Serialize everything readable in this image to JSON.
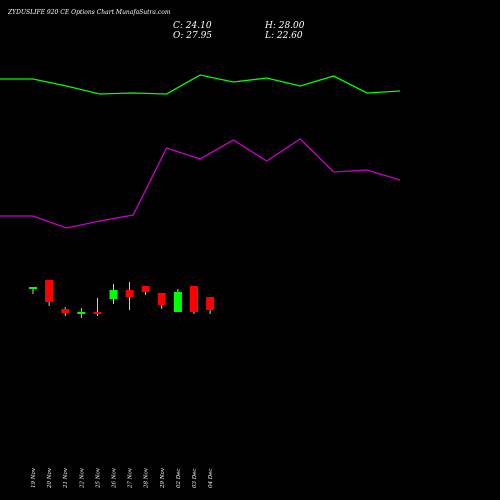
{
  "chart_data": {
    "type": "candlestick",
    "title": "ZYDUSLIFE 920  CE Options  Chart MunafaSutra.com",
    "ohlc_readout": {
      "C": "C: 24.10",
      "O": "O: 27.95",
      "H": "H: 28.00",
      "L": "L: 22.60"
    },
    "categories": [
      "19 Nov",
      "20 Nov",
      "21 Nov",
      "22 Nov",
      "25 Nov",
      "26 Nov",
      "27 Nov",
      "28 Nov",
      "29 Nov",
      "02 Dec",
      "03 Dec",
      "04 Dec"
    ],
    "candles": [
      {
        "date": "19 Nov",
        "open": 61.0,
        "high": 63.0,
        "low": 56.0,
        "close": 63.0,
        "dir": "up"
      },
      {
        "date": "20 Nov",
        "open": 70.0,
        "high": 70.0,
        "low": 44.0,
        "close": 48.0,
        "dir": "down"
      },
      {
        "date": "21 Nov",
        "open": 41.0,
        "high": 43.0,
        "low": 34.0,
        "close": 37.0,
        "dir": "down"
      },
      {
        "date": "22 Nov",
        "open": 37.5,
        "high": 42.0,
        "low": 32.0,
        "close": 38.0,
        "dir": "up"
      },
      {
        "date": "25 Nov",
        "open": 38.0,
        "high": 52.0,
        "low": 34.0,
        "close": 37.0,
        "dir": "down"
      },
      {
        "date": "26 Nov",
        "open": 51.0,
        "high": 66.0,
        "low": 46.0,
        "close": 60.0,
        "dir": "up"
      },
      {
        "date": "27 Nov",
        "open": 60.0,
        "high": 68.0,
        "low": 40.0,
        "close": 53.0,
        "dir": "down"
      },
      {
        "date": "28 Nov",
        "open": 64.0,
        "high": 64.0,
        "low": 55.0,
        "close": 58.0,
        "dir": "down"
      },
      {
        "date": "29 Nov",
        "open": 57.0,
        "high": 57.0,
        "low": 41.0,
        "close": 45.0,
        "dir": "down"
      },
      {
        "date": "02 Dec",
        "open": 38.0,
        "high": 61.0,
        "low": 38.0,
        "close": 58.0,
        "dir": "up"
      },
      {
        "date": "03 Dec",
        "open": 64.0,
        "high": 64.0,
        "low": 36.0,
        "close": 38.0,
        "dir": "down"
      },
      {
        "date": "04 Dec",
        "open": 53.0,
        "high": 53.0,
        "low": 36.0,
        "close": 40.0,
        "dir": "down"
      }
    ],
    "line_green": [
      221,
      221,
      214,
      206,
      207,
      206,
      225,
      218,
      222,
      214,
      224,
      207,
      209
    ],
    "line_magenta": [
      84,
      84,
      72,
      79,
      85,
      152,
      141,
      160,
      139,
      161,
      128,
      130,
      120
    ],
    "line_points_date_index": [
      -0.5,
      0,
      1,
      2,
      3,
      4,
      5,
      6,
      7,
      8,
      9,
      10,
      11
    ],
    "colors": {
      "background": "#000000",
      "up": "#00ff00",
      "down": "#ff0000",
      "wick": "#ffffff",
      "line_green": "#00ff00",
      "line_magenta": "#cc00cc",
      "text": "#ffffff"
    },
    "grid": false,
    "legend": "none"
  }
}
